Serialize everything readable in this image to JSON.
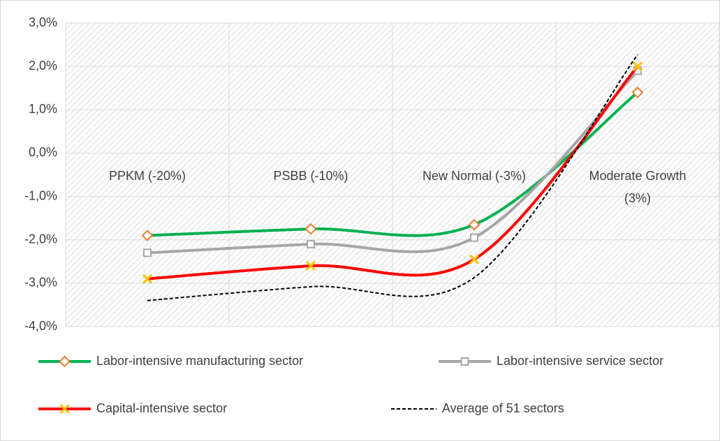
{
  "chart_data": {
    "type": "line",
    "categories": [
      "PPKM (-20%)",
      "PSBB (-10%)",
      "New Normal (-3%)",
      "Moderate Growth (3%)"
    ],
    "series": [
      {
        "name": "Labor-intensive manufacturing sector",
        "color": "#00b050",
        "marker": "diamond",
        "marker_color": "#ed7d31",
        "values": [
          -1.9,
          -1.75,
          -1.65,
          1.4
        ]
      },
      {
        "name": "Labor-intensive service sector",
        "color": "#a6a6a6",
        "marker": "square",
        "marker_color": "#a6a6a6",
        "values": [
          -2.3,
          -2.1,
          -1.95,
          1.9
        ]
      },
      {
        "name": "Capital-intensive sector",
        "color": "#ff0000",
        "marker": "x",
        "marker_color": "#ffc000",
        "values": [
          -2.9,
          -2.6,
          -2.45,
          2.0
        ]
      },
      {
        "name": "Average of 51 sectors",
        "color": "#000000",
        "marker": "none",
        "dashed": true,
        "values": [
          -3.4,
          -3.08,
          -2.87,
          2.27
        ]
      }
    ],
    "ylim": [
      -4,
      3
    ],
    "yticks": [
      {
        "value": -4,
        "label": "-4,0%"
      },
      {
        "value": -3,
        "label": "-3,0%"
      },
      {
        "value": -2,
        "label": "-2,0%"
      },
      {
        "value": -1,
        "label": "-1,0%"
      },
      {
        "value": 0,
        "label": "0,0%"
      },
      {
        "value": 1,
        "label": "1,0%"
      },
      {
        "value": 2,
        "label": "2,0%"
      },
      {
        "value": 3,
        "label": "3,0%"
      }
    ],
    "grid": true,
    "smooth": true,
    "legend": "bottom"
  }
}
